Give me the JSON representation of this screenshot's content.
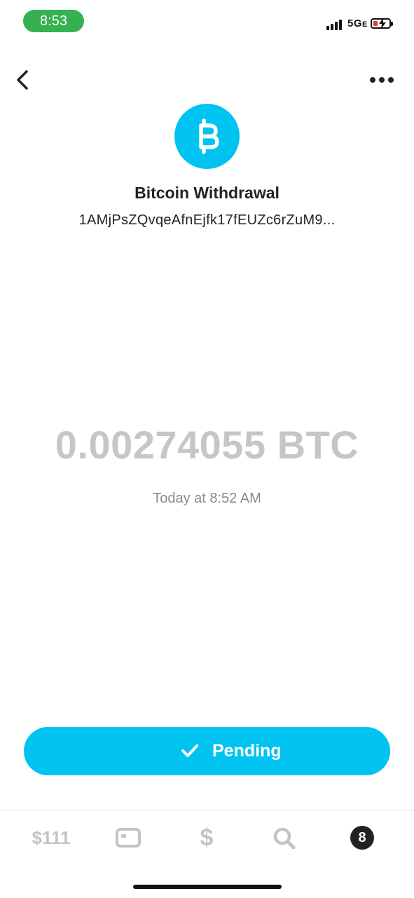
{
  "status_bar": {
    "time": "8:53",
    "network": "5G",
    "network_suffix": "E"
  },
  "header": {
    "back_icon": "chevron-left-icon",
    "more_icon": "more-horizontal-icon"
  },
  "transaction": {
    "icon": "bitcoin-icon",
    "title": "Bitcoin Withdrawal",
    "address": "1AMjPsZQvqeAfnEjfk17fEUZc6rZuM9...",
    "amount": "0.00274055 BTC",
    "date": "Today at 8:52 AM",
    "status_label": "Pending"
  },
  "tab_bar": {
    "balance": "$111",
    "dollar": "$",
    "activity_badge": "8"
  },
  "colors": {
    "accent": "#00c3f2",
    "time_pill": "#35b24f",
    "amount": "#c6c6c6",
    "muted": "#8a8a8a",
    "tab_inactive": "#c4c4c4"
  }
}
